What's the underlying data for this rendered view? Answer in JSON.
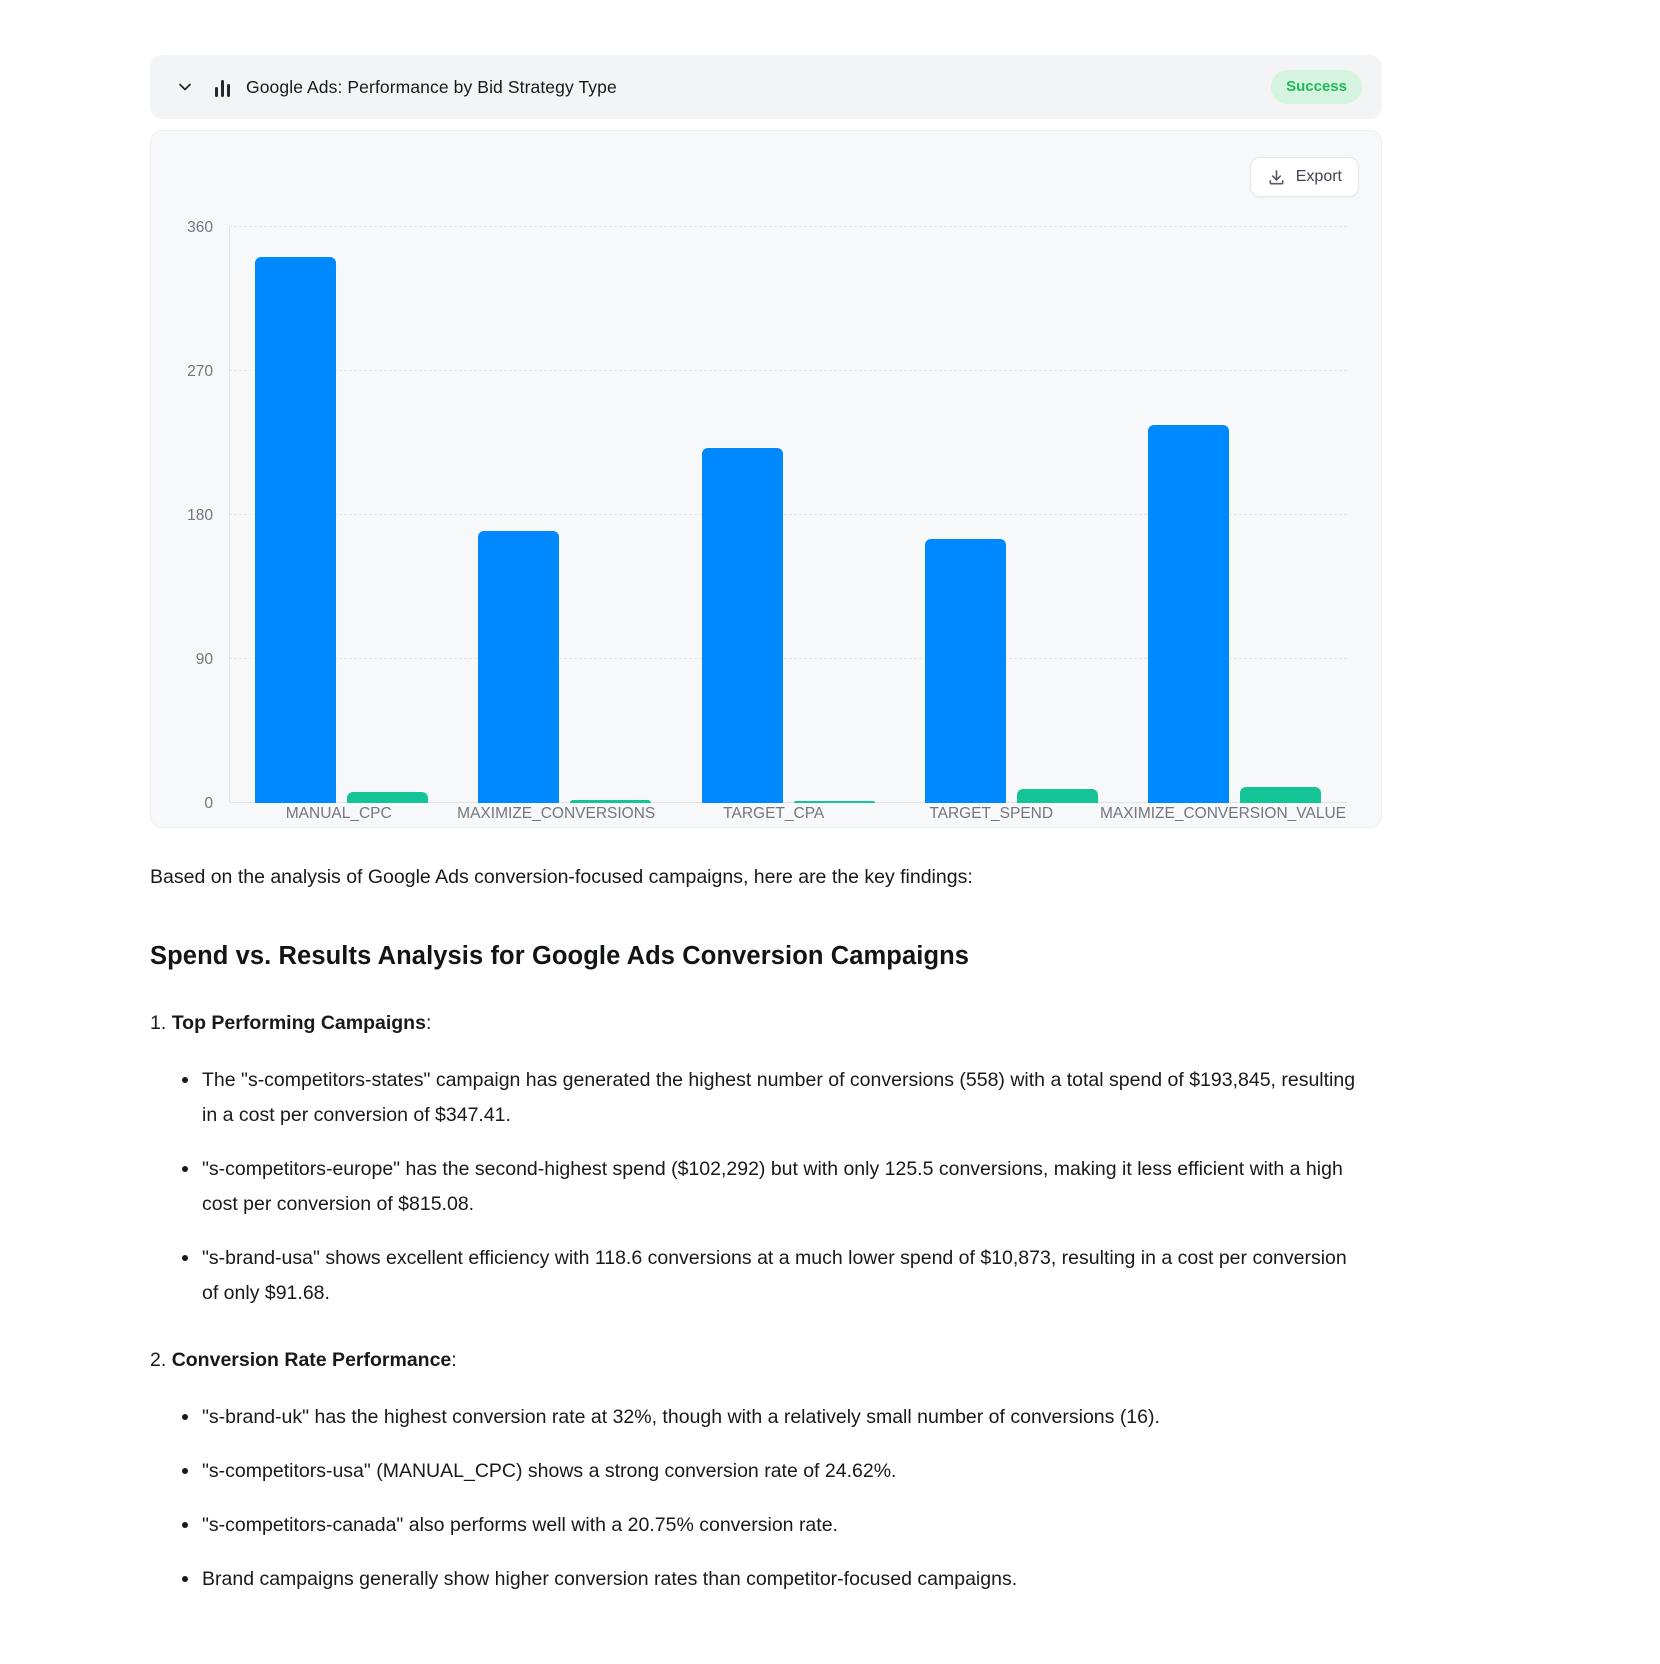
{
  "header": {
    "title": "Google Ads: Performance by Bid Strategy Type",
    "status": "Success"
  },
  "toolbar": {
    "export_label": "Export"
  },
  "colors": {
    "blue_bar": "#0088ff",
    "green_bar": "#14c496",
    "badge_bg": "#d5f3de",
    "badge_text": "#1fba57"
  },
  "chart_data": {
    "type": "bar",
    "title": "Google Ads: Performance by Bid Strategy Type",
    "categories": [
      "MANUAL_CPC",
      "MAXIMIZE_CONVERSIONS",
      "TARGET_CPA",
      "TARGET_SPEND",
      "MAXIMIZE_CONVERSION_VALUE"
    ],
    "series": [
      {
        "name": "blue",
        "color": "#0088ff",
        "values": [
          341,
          170,
          222,
          165,
          236
        ]
      },
      {
        "name": "green",
        "color": "#14c496",
        "values": [
          7,
          2,
          1.5,
          9,
          10
        ]
      }
    ],
    "xlabel": "",
    "ylabel": "",
    "ylim": [
      0,
      360
    ],
    "yticks": [
      0,
      90,
      180,
      270,
      360
    ],
    "grid": "horizontal-dashed",
    "legend": "none"
  },
  "analysis": {
    "intro": "Based on the analysis of Google Ads conversion-focused campaigns, here are the key findings:",
    "heading": "Spend vs. Results Analysis for Google Ads Conversion Campaigns",
    "sections": [
      {
        "number": "1.",
        "title": "Top Performing Campaigns",
        "suffix": ":",
        "bullets": [
          "The \"s-competitors-states\" campaign has generated the highest number of conversions (558) with a total spend of $193,845, resulting in a cost per conversion of $347.41.",
          "\"s-competitors-europe\" has the second-highest spend ($102,292) but with only 125.5 conversions, making it less efficient with a high cost per conversion of $815.08.",
          "\"s-brand-usa\" shows excellent efficiency with 118.6 conversions at a much lower spend of $10,873, resulting in a cost per conversion of only $91.68."
        ]
      },
      {
        "number": "2.",
        "title": "Conversion Rate Performance",
        "suffix": ":",
        "bullets": [
          "\"s-brand-uk\" has the highest conversion rate at 32%, though with a relatively small number of conversions (16).",
          "\"s-competitors-usa\" (MANUAL_CPC) shows a strong conversion rate of 24.62%.",
          "\"s-competitors-canada\" also performs well with a 20.75% conversion rate.",
          "Brand campaigns generally show higher conversion rates than competitor-focused campaigns."
        ]
      }
    ]
  }
}
